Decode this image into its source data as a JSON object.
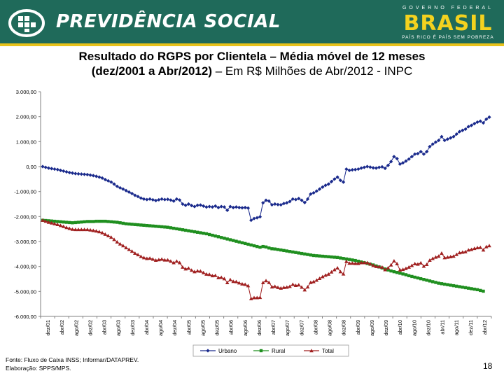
{
  "header": {
    "brand": "PREVIDÊNCIA SOCIAL",
    "gov_top": "GOVERNO FEDERAL",
    "gov_brasil": "BRASIL",
    "gov_slogan": "PAÍS RICO É PAÍS SEM POBREZA",
    "colors": {
      "banner": "#1f6a5a",
      "stripe": "#e8c21a"
    }
  },
  "slide": {
    "title_line1": "Resultado do RGPS por Clientela – Média móvel de 12 meses",
    "title_line2_bold": "(dez/2001 a Abr/2012)",
    "title_line2_rest": " – Em R$ Milhões de Abr/2012 - INPC",
    "footer_source": "Fonte: Fluxo de Caixa INSS; Informar/DATAPREV.",
    "footer_credit": "Elaboração: SPPS/MPS.",
    "page_number": "18"
  },
  "chart_data": {
    "type": "line",
    "x_start": "dez/01",
    "x_end": "abr/12",
    "x_tick_labels": [
      "dez/01",
      "abr/02",
      "ago/02",
      "dez/02",
      "abr/03",
      "ago/03",
      "dez/03",
      "abr/04",
      "ago/04",
      "dez/04",
      "abr/05",
      "ago/05",
      "dez/05",
      "abr/06",
      "ago/06",
      "dez/06",
      "abr/07",
      "ago/07",
      "dez/07",
      "abr/08",
      "ago/08",
      "dez/08",
      "abr/09",
      "ago/09",
      "dez/09",
      "abr/10",
      "ago/10",
      "dez/10",
      "abr/11",
      "ago/11",
      "dez/11",
      "abr/12"
    ],
    "y_tick_labels": [
      "3.000,00",
      "2.000,00",
      "1.000,00",
      "0,00",
      "-1.000,00",
      "-2.000,00",
      "-3.000,00",
      "-4.000,00",
      "-5.000,00",
      "-6.000,00"
    ],
    "ylim": [
      -6000,
      3000
    ],
    "grid": false,
    "legend_position": "bottom",
    "series": [
      {
        "name": "Urbano",
        "color": "#1a2a8c",
        "marker": "diamond",
        "values": [
          0,
          -30,
          -60,
          -80,
          -100,
          -120,
          -150,
          -180,
          -210,
          -240,
          -260,
          -280,
          -290,
          -300,
          -310,
          -320,
          -340,
          -360,
          -390,
          -420,
          -460,
          -520,
          -570,
          -620,
          -700,
          -790,
          -850,
          -900,
          -960,
          -1020,
          -1080,
          -1150,
          -1200,
          -1260,
          -1300,
          -1320,
          -1300,
          -1330,
          -1360,
          -1330,
          -1300,
          -1320,
          -1310,
          -1340,
          -1380,
          -1300,
          -1340,
          -1500,
          -1550,
          -1500,
          -1560,
          -1600,
          -1550,
          -1540,
          -1580,
          -1620,
          -1600,
          -1620,
          -1580,
          -1640,
          -1600,
          -1620,
          -1750,
          -1600,
          -1640,
          -1620,
          -1640,
          -1650,
          -1640,
          -1660,
          -2150,
          -2080,
          -2050,
          -2010,
          -1450,
          -1350,
          -1380,
          -1530,
          -1500,
          -1520,
          -1530,
          -1480,
          -1450,
          -1400,
          -1300,
          -1320,
          -1280,
          -1350,
          -1440,
          -1300,
          -1100,
          -1050,
          -980,
          -900,
          -820,
          -750,
          -700,
          -600,
          -500,
          -420,
          -550,
          -620,
          -100,
          -150,
          -130,
          -120,
          -100,
          -60,
          -30,
          0,
          -20,
          -50,
          -60,
          -30,
          -10,
          -70,
          50,
          200,
          400,
          320,
          100,
          150,
          220,
          300,
          400,
          500,
          520,
          600,
          500,
          600,
          800,
          900,
          980,
          1050,
          1200,
          1050,
          1100,
          1150,
          1200,
          1300,
          1400,
          1450,
          1500,
          1600,
          1650,
          1720,
          1780,
          1820,
          1750,
          1900,
          1980
        ]
      },
      {
        "name": "Rural",
        "color": "#1f8f1f",
        "marker": "square",
        "values": [
          -2150,
          -2160,
          -2170,
          -2180,
          -2190,
          -2200,
          -2210,
          -2220,
          -2230,
          -2240,
          -2250,
          -2240,
          -2230,
          -2220,
          -2210,
          -2200,
          -2200,
          -2200,
          -2190,
          -2190,
          -2190,
          -2190,
          -2200,
          -2210,
          -2220,
          -2230,
          -2250,
          -2270,
          -2290,
          -2300,
          -2310,
          -2320,
          -2330,
          -2340,
          -2350,
          -2360,
          -2370,
          -2380,
          -2390,
          -2400,
          -2410,
          -2420,
          -2430,
          -2450,
          -2470,
          -2490,
          -2510,
          -2530,
          -2550,
          -2570,
          -2590,
          -2610,
          -2630,
          -2650,
          -2670,
          -2690,
          -2720,
          -2750,
          -2780,
          -2810,
          -2840,
          -2870,
          -2900,
          -2930,
          -2960,
          -2990,
          -3020,
          -3050,
          -3080,
          -3110,
          -3140,
          -3170,
          -3200,
          -3230,
          -3200,
          -3220,
          -3260,
          -3290,
          -3300,
          -3320,
          -3340,
          -3360,
          -3380,
          -3400,
          -3420,
          -3440,
          -3460,
          -3480,
          -3500,
          -3520,
          -3540,
          -3560,
          -3570,
          -3580,
          -3590,
          -3600,
          -3610,
          -3620,
          -3630,
          -3640,
          -3660,
          -3680,
          -3700,
          -3720,
          -3740,
          -3760,
          -3790,
          -3820,
          -3850,
          -3880,
          -3910,
          -3940,
          -3980,
          -4020,
          -4060,
          -4100,
          -4140,
          -4180,
          -4210,
          -4240,
          -4270,
          -4300,
          -4330,
          -4370,
          -4400,
          -4430,
          -4460,
          -4490,
          -4520,
          -4550,
          -4580,
          -4610,
          -4640,
          -4670,
          -4690,
          -4710,
          -4730,
          -4750,
          -4770,
          -4790,
          -4810,
          -4830,
          -4850,
          -4870,
          -4890,
          -4910,
          -4930,
          -4960,
          -4990
        ]
      },
      {
        "name": "Total",
        "color": "#a02020",
        "marker": "triangle",
        "values": [
          -2150,
          -2190,
          -2230,
          -2260,
          -2290,
          -2320,
          -2360,
          -2400,
          -2440,
          -2480,
          -2510,
          -2520,
          -2520,
          -2520,
          -2520,
          -2520,
          -2540,
          -2560,
          -2580,
          -2610,
          -2650,
          -2710,
          -2770,
          -2830,
          -2920,
          -3020,
          -3100,
          -3170,
          -3250,
          -3320,
          -3390,
          -3470,
          -3530,
          -3600,
          -3650,
          -3680,
          -3670,
          -3710,
          -3750,
          -3730,
          -3710,
          -3740,
          -3740,
          -3790,
          -3850,
          -3790,
          -3850,
          -4030,
          -4100,
          -4070,
          -4150,
          -4210,
          -4180,
          -4190,
          -4250,
          -4310,
          -4320,
          -4370,
          -4360,
          -4450,
          -4440,
          -4490,
          -4650,
          -4530,
          -4600,
          -4610,
          -4660,
          -4700,
          -4720,
          -4770,
          -5290,
          -5250,
          -5250,
          -5240,
          -4650,
          -4570,
          -4640,
          -4820,
          -4800,
          -4840,
          -4870,
          -4840,
          -4830,
          -4800,
          -4720,
          -4760,
          -4740,
          -4830,
          -4940,
          -4820,
          -4640,
          -4610,
          -4550,
          -4480,
          -4410,
          -4350,
          -4310,
          -4220,
          -4130,
          -4060,
          -4210,
          -4300,
          -3800,
          -3870,
          -3870,
          -3880,
          -3880,
          -3850,
          -3850,
          -3850,
          -3900,
          -3960,
          -4000,
          -4010,
          -4030,
          -4130,
          -4060,
          -3940,
          -3780,
          -3890,
          -4140,
          -4120,
          -4080,
          -4030,
          -3960,
          -3890,
          -3910,
          -3860,
          -3990,
          -3920,
          -3750,
          -3680,
          -3630,
          -3590,
          -3470,
          -3650,
          -3630,
          -3610,
          -3590,
          -3520,
          -3450,
          -3430,
          -3410,
          -3340,
          -3320,
          -3280,
          -3250,
          -3240,
          -3340,
          -3210,
          -3170
        ]
      }
    ]
  }
}
